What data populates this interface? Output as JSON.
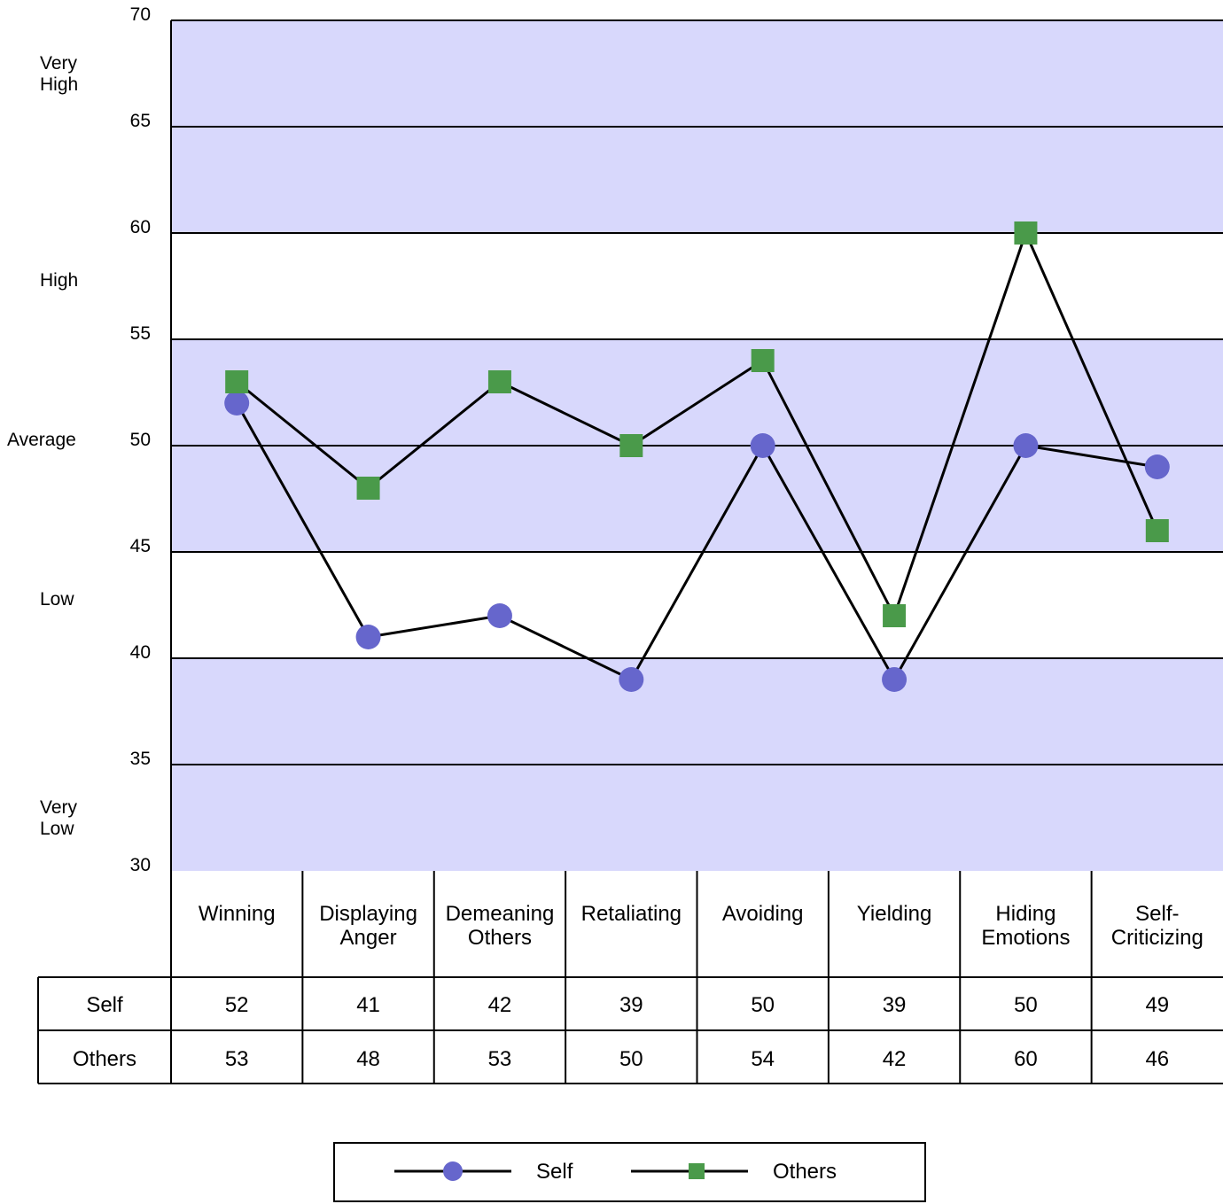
{
  "chart_data": {
    "type": "line",
    "categories": [
      [
        "Winning"
      ],
      [
        "Displaying",
        "Anger"
      ],
      [
        "Demeaning",
        "Others"
      ],
      [
        "Retaliating"
      ],
      [
        "Avoiding"
      ],
      [
        "Yielding"
      ],
      [
        "Hiding",
        "Emotions"
      ],
      [
        "Self-",
        "Criticizing"
      ]
    ],
    "series": [
      {
        "name": "Self",
        "marker": "circle",
        "color": "#6666cc",
        "values": [
          52,
          41,
          42,
          39,
          50,
          39,
          50,
          49
        ]
      },
      {
        "name": "Others",
        "marker": "square",
        "color": "#4a9a4a",
        "values": [
          53,
          48,
          53,
          50,
          54,
          42,
          60,
          46
        ]
      }
    ],
    "y_ticks": [
      70,
      65,
      60,
      55,
      50,
      45,
      40,
      35,
      30
    ],
    "ylim": [
      30,
      70
    ],
    "bands": [
      {
        "range": [
          60,
          70
        ],
        "label": [
          "Very",
          "High"
        ],
        "label_value": 67.5,
        "color": "#d8d8fc"
      },
      {
        "range": [
          45,
          55
        ],
        "label": [
          "Average"
        ],
        "label_value": 50.3,
        "color": "#d8d8fc"
      },
      {
        "range": [
          30,
          40
        ],
        "label": [
          "Very",
          "Low"
        ],
        "label_value": 32.5,
        "color": "#d8d8fc"
      },
      {
        "range": [
          55,
          60
        ],
        "label": [
          "High"
        ],
        "label_value": 57.8,
        "color": "#ffffff"
      },
      {
        "range": [
          40,
          45
        ],
        "label": [
          "Low"
        ],
        "label_value": 42.8,
        "color": "#ffffff"
      }
    ],
    "gridlines": [
      65,
      60,
      55,
      50,
      45,
      40,
      35
    ],
    "table": {
      "row_labels": [
        "Self",
        "Others"
      ]
    },
    "legend": {
      "position": "bottom-center"
    }
  }
}
